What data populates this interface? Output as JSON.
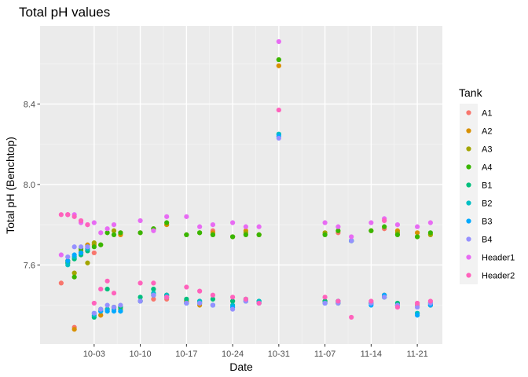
{
  "chart_data": {
    "type": "scatter",
    "title": "Total pH values",
    "xlabel": "Date",
    "ylabel": "Total pH (Benchtop)",
    "x_tick_labels": [
      "10-03",
      "10-10",
      "10-17",
      "10-24",
      "10-31",
      "11-07",
      "11-14",
      "11-21"
    ],
    "x_ticks_day": [
      4,
      11,
      18,
      25,
      32,
      39,
      46,
      53
    ],
    "xlim_day": [
      -4.2,
      56.8
    ],
    "y_ticks": [
      7.6,
      8.0,
      8.4
    ],
    "y_tick_labels": [
      "7.6",
      "8.0",
      "8.4"
    ],
    "ylim": [
      7.207,
      8.788
    ],
    "grid": true,
    "legend": {
      "title": "Tank",
      "position": "right"
    },
    "series": [
      {
        "name": "A1",
        "color": "#F8766D",
        "points": [
          [
            -1,
            7.51
          ],
          [
            0,
            7.85
          ],
          [
            1,
            7.29
          ],
          [
            3,
            7.67
          ],
          [
            4,
            7.66
          ],
          [
            5,
            7.35
          ],
          [
            6,
            7.38
          ],
          [
            7,
            7.39
          ],
          [
            8,
            7.76
          ],
          [
            11,
            7.76
          ],
          [
            13,
            7.43
          ],
          [
            15,
            7.43
          ],
          [
            18,
            7.42
          ],
          [
            20,
            7.41
          ],
          [
            22,
            7.77
          ],
          [
            25,
            7.74
          ],
          [
            27,
            7.42
          ],
          [
            29,
            7.75
          ],
          [
            32,
            8.59
          ],
          [
            39,
            7.42
          ],
          [
            41,
            7.76
          ],
          [
            43,
            7.72
          ],
          [
            46,
            7.41
          ],
          [
            48,
            7.78
          ],
          [
            50,
            7.4
          ],
          [
            53,
            7.4
          ],
          [
            55,
            7.4
          ]
        ]
      },
      {
        "name": "A2",
        "color": "#D89000",
        "points": [
          [
            0,
            7.62
          ],
          [
            1,
            7.28
          ],
          [
            2,
            7.67
          ],
          [
            3,
            7.7
          ],
          [
            4,
            7.7
          ],
          [
            5,
            7.35
          ],
          [
            6,
            7.38
          ],
          [
            7,
            7.39
          ],
          [
            8,
            7.75
          ],
          [
            11,
            7.42
          ],
          [
            13,
            7.45
          ],
          [
            15,
            7.8
          ],
          [
            18,
            7.42
          ],
          [
            20,
            7.4
          ],
          [
            22,
            7.76
          ],
          [
            25,
            7.42
          ],
          [
            27,
            7.77
          ],
          [
            29,
            7.41
          ],
          [
            32,
            8.59
          ],
          [
            39,
            7.42
          ],
          [
            41,
            7.41
          ],
          [
            43,
            7.72
          ],
          [
            46,
            7.77
          ],
          [
            48,
            7.45
          ],
          [
            50,
            7.77
          ],
          [
            53,
            7.76
          ],
          [
            55,
            7.4
          ]
        ]
      },
      {
        "name": "A3",
        "color": "#A3A500",
        "points": [
          [
            0,
            7.61
          ],
          [
            1,
            7.56
          ],
          [
            2,
            7.66
          ],
          [
            3,
            7.61
          ],
          [
            4,
            7.71
          ],
          [
            5,
            7.7
          ],
          [
            6,
            7.37
          ],
          [
            7,
            7.77
          ],
          [
            8,
            7.38
          ],
          [
            11,
            7.42
          ],
          [
            13,
            7.78
          ],
          [
            15,
            7.45
          ],
          [
            18,
            7.75
          ],
          [
            20,
            7.76
          ],
          [
            22,
            7.75
          ],
          [
            25,
            7.74
          ],
          [
            27,
            7.76
          ],
          [
            29,
            7.75
          ],
          [
            32,
            8.62
          ],
          [
            39,
            7.76
          ],
          [
            41,
            7.42
          ],
          [
            43,
            7.72
          ],
          [
            46,
            7.41
          ],
          [
            48,
            7.44
          ],
          [
            50,
            7.76
          ],
          [
            53,
            7.74
          ],
          [
            55,
            7.75
          ]
        ]
      },
      {
        "name": "A4",
        "color": "#39B600",
        "points": [
          [
            0,
            7.62
          ],
          [
            1,
            7.54
          ],
          [
            2,
            7.68
          ],
          [
            3,
            7.69
          ],
          [
            4,
            7.69
          ],
          [
            5,
            7.7
          ],
          [
            6,
            7.76
          ],
          [
            7,
            7.75
          ],
          [
            8,
            7.76
          ],
          [
            11,
            7.76
          ],
          [
            13,
            7.78
          ],
          [
            15,
            7.81
          ],
          [
            18,
            7.75
          ],
          [
            20,
            7.76
          ],
          [
            22,
            7.75
          ],
          [
            25,
            7.74
          ],
          [
            27,
            7.75
          ],
          [
            29,
            7.75
          ],
          [
            32,
            8.62
          ],
          [
            39,
            7.75
          ],
          [
            41,
            7.77
          ],
          [
            43,
            7.72
          ],
          [
            46,
            7.77
          ],
          [
            48,
            7.79
          ],
          [
            50,
            7.75
          ],
          [
            53,
            7.74
          ],
          [
            55,
            7.76
          ]
        ]
      },
      {
        "name": "B1",
        "color": "#00BF7D",
        "points": [
          [
            0,
            7.61
          ],
          [
            1,
            7.63
          ],
          [
            2,
            7.65
          ],
          [
            3,
            7.67
          ],
          [
            4,
            7.34
          ],
          [
            5,
            7.38
          ],
          [
            6,
            7.48
          ],
          [
            7,
            7.39
          ],
          [
            8,
            7.39
          ],
          [
            11,
            7.44
          ],
          [
            13,
            7.48
          ],
          [
            15,
            7.45
          ],
          [
            18,
            7.43
          ],
          [
            20,
            7.42
          ],
          [
            22,
            7.43
          ],
          [
            25,
            7.42
          ],
          [
            27,
            7.43
          ],
          [
            29,
            7.42
          ],
          [
            32,
            8.25
          ],
          [
            39,
            7.42
          ],
          [
            41,
            7.41
          ],
          [
            43,
            7.72
          ],
          [
            46,
            7.41
          ],
          [
            48,
            7.44
          ],
          [
            50,
            7.41
          ],
          [
            53,
            7.36
          ],
          [
            55,
            7.41
          ]
        ]
      },
      {
        "name": "B2",
        "color": "#00BFC4",
        "points": [
          [
            0,
            7.6
          ],
          [
            1,
            7.64
          ],
          [
            2,
            7.66
          ],
          [
            3,
            7.68
          ],
          [
            4,
            7.35
          ],
          [
            5,
            7.37
          ],
          [
            6,
            7.38
          ],
          [
            7,
            7.38
          ],
          [
            8,
            7.37
          ],
          [
            11,
            7.42
          ],
          [
            13,
            7.46
          ],
          [
            15,
            7.45
          ],
          [
            18,
            7.41
          ],
          [
            20,
            7.42
          ],
          [
            22,
            7.4
          ],
          [
            25,
            7.4
          ],
          [
            27,
            7.42
          ],
          [
            29,
            7.42
          ],
          [
            32,
            8.25
          ],
          [
            39,
            7.41
          ],
          [
            41,
            7.42
          ],
          [
            43,
            7.72
          ],
          [
            46,
            7.41
          ],
          [
            48,
            7.44
          ],
          [
            50,
            7.4
          ],
          [
            53,
            7.36
          ],
          [
            55,
            7.4
          ]
        ]
      },
      {
        "name": "B3",
        "color": "#00A9FF",
        "points": [
          [
            0,
            7.62
          ],
          [
            1,
            7.65
          ],
          [
            2,
            7.66
          ],
          [
            3,
            7.69
          ],
          [
            4,
            7.36
          ],
          [
            5,
            7.37
          ],
          [
            6,
            7.37
          ],
          [
            7,
            7.37
          ],
          [
            8,
            7.37
          ],
          [
            11,
            7.42
          ],
          [
            13,
            7.45
          ],
          [
            15,
            7.44
          ],
          [
            18,
            7.41
          ],
          [
            20,
            7.41
          ],
          [
            22,
            7.4
          ],
          [
            25,
            7.39
          ],
          [
            27,
            7.42
          ],
          [
            29,
            7.41
          ],
          [
            32,
            8.24
          ],
          [
            39,
            7.41
          ],
          [
            41,
            7.42
          ],
          [
            43,
            7.72
          ],
          [
            46,
            7.4
          ],
          [
            48,
            7.45
          ],
          [
            50,
            7.4
          ],
          [
            53,
            7.35
          ],
          [
            55,
            7.4
          ]
        ]
      },
      {
        "name": "B4",
        "color": "#9590FF",
        "points": [
          [
            0,
            7.64
          ],
          [
            1,
            7.69
          ],
          [
            2,
            7.69
          ],
          [
            3,
            7.69
          ],
          [
            4,
            7.36
          ],
          [
            5,
            7.38
          ],
          [
            6,
            7.4
          ],
          [
            7,
            7.39
          ],
          [
            8,
            7.4
          ],
          [
            11,
            7.42
          ],
          [
            13,
            7.45
          ],
          [
            15,
            7.44
          ],
          [
            18,
            7.41
          ],
          [
            20,
            7.41
          ],
          [
            22,
            7.4
          ],
          [
            25,
            7.38
          ],
          [
            27,
            7.42
          ],
          [
            29,
            7.41
          ],
          [
            32,
            8.23
          ],
          [
            39,
            7.41
          ],
          [
            41,
            7.41
          ],
          [
            43,
            7.72
          ],
          [
            46,
            7.41
          ],
          [
            48,
            7.44
          ],
          [
            50,
            7.4
          ],
          [
            53,
            7.39
          ],
          [
            55,
            7.41
          ]
        ]
      },
      {
        "name": "Header1",
        "color": "#E76BF3",
        "points": [
          [
            -1,
            7.65
          ],
          [
            0,
            7.85
          ],
          [
            1,
            7.85
          ],
          [
            2,
            7.81
          ],
          [
            3,
            7.8
          ],
          [
            4,
            7.81
          ],
          [
            5,
            7.76
          ],
          [
            6,
            7.78
          ],
          [
            7,
            7.8
          ],
          [
            11,
            7.82
          ],
          [
            13,
            7.77
          ],
          [
            15,
            7.84
          ],
          [
            18,
            7.84
          ],
          [
            20,
            7.79
          ],
          [
            22,
            7.8
          ],
          [
            25,
            7.81
          ],
          [
            27,
            7.79
          ],
          [
            29,
            7.79
          ],
          [
            32,
            8.71
          ],
          [
            39,
            7.81
          ],
          [
            41,
            7.79
          ],
          [
            43,
            7.74
          ],
          [
            46,
            7.81
          ],
          [
            48,
            7.83
          ],
          [
            50,
            7.8
          ],
          [
            53,
            7.79
          ],
          [
            55,
            7.81
          ]
        ]
      },
      {
        "name": "Header2",
        "color": "#FF62BC",
        "points": [
          [
            -1,
            7.85
          ],
          [
            0,
            7.85
          ],
          [
            1,
            7.84
          ],
          [
            2,
            7.82
          ],
          [
            3,
            7.8
          ],
          [
            4,
            7.41
          ],
          [
            5,
            7.48
          ],
          [
            6,
            7.52
          ],
          [
            7,
            7.46
          ],
          [
            11,
            7.51
          ],
          [
            13,
            7.51
          ],
          [
            15,
            7.44
          ],
          [
            18,
            7.49
          ],
          [
            20,
            7.47
          ],
          [
            22,
            7.45
          ],
          [
            25,
            7.44
          ],
          [
            27,
            7.43
          ],
          [
            29,
            7.41
          ],
          [
            32,
            8.37
          ],
          [
            39,
            7.44
          ],
          [
            41,
            7.42
          ],
          [
            43,
            7.34
          ],
          [
            46,
            7.42
          ],
          [
            48,
            7.82
          ],
          [
            50,
            7.39
          ],
          [
            53,
            7.41
          ],
          [
            55,
            7.42
          ]
        ]
      }
    ]
  }
}
